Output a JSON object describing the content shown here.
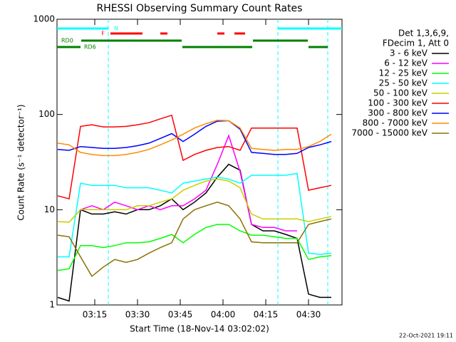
{
  "chart_data": {
    "type": "line",
    "title": "RHESSI Observing Summary Count Rates",
    "xlabel": "Start Time (18-Nov-14 03:02:02)",
    "ylabel": "Count Rate (s⁻¹ detector⁻¹)",
    "legend_header": [
      "Det 1,3,6,9,",
      "FDecim 1, Att 0"
    ],
    "footer": "22-Oct-2021 19:11",
    "yscale": "log",
    "xlim": [
      1.75,
      101.75
    ],
    "ylim": [
      1,
      1000
    ],
    "xticks": [
      {
        "value": 15,
        "label": "03:15"
      },
      {
        "value": 30,
        "label": "03:30"
      },
      {
        "value": 45,
        "label": "03:45"
      },
      {
        "value": 60,
        "label": "04:00"
      },
      {
        "value": 75,
        "label": "04:15"
      },
      {
        "value": 90,
        "label": "04:30"
      }
    ],
    "yticks": [
      1,
      10,
      100,
      1000
    ],
    "legend": "right",
    "x": [
      2,
      6,
      10,
      14,
      18,
      22,
      26,
      30,
      34,
      38,
      42,
      46,
      50,
      54,
      58,
      62,
      66,
      70,
      74,
      78,
      82,
      86,
      90,
      94,
      98
    ],
    "series": [
      {
        "name": "3 - 6 keV",
        "color": "#000000",
        "values": [
          1.2,
          1.1,
          10,
          9,
          9,
          9.5,
          9,
          10,
          10,
          11,
          13,
          10,
          12,
          15,
          22,
          30,
          26,
          7,
          6,
          6,
          5.5,
          5,
          1.3,
          1.2,
          1.2
        ]
      },
      {
        "name": "6 - 12 keV",
        "color": "#ff00ff",
        "values": [
          null,
          null,
          10,
          11,
          10,
          12,
          11,
          10,
          11,
          10,
          11,
          11,
          13,
          16,
          30,
          60,
          25,
          7,
          6.5,
          6.5,
          6,
          6,
          null,
          null,
          null
        ]
      },
      {
        "name": "12 - 25 keV",
        "color": "#00ff00",
        "values": [
          2.3,
          2.4,
          4.2,
          4.2,
          4,
          4.2,
          4.5,
          4.5,
          4.6,
          5,
          5.5,
          4.5,
          5.5,
          6.5,
          7,
          7,
          6,
          5.4,
          5.4,
          5.2,
          5,
          5,
          3,
          3.2,
          3.3
        ]
      },
      {
        "name": "25 - 50 keV",
        "color": "#00ffff",
        "values": [
          3.2,
          3.2,
          19,
          18,
          18,
          18,
          17,
          17,
          17,
          16,
          15,
          19,
          20,
          21,
          22,
          21,
          19,
          23,
          23,
          23,
          23,
          24,
          3.5,
          3.4,
          3.5
        ]
      },
      {
        "name": "50 - 100 keV",
        "color": "#cccc00",
        "values": [
          7.5,
          7.4,
          10,
          10,
          10,
          10,
          10,
          11,
          11,
          12,
          13,
          16,
          18,
          20,
          21,
          20,
          17,
          9,
          8,
          8,
          8,
          8,
          7.5,
          8,
          8.5
        ]
      },
      {
        "name": "100 - 300 keV",
        "color": "#ff0000",
        "values": [
          14,
          13,
          75,
          78,
          74,
          74,
          75,
          78,
          82,
          90,
          98,
          33,
          38,
          42,
          45,
          46,
          42,
          72,
          72,
          72,
          72,
          72,
          16,
          17,
          18
        ]
      },
      {
        "name": "300 - 800 keV",
        "color": "#0000ff",
        "values": [
          43,
          42,
          46,
          45,
          44,
          44,
          45,
          47,
          50,
          56,
          63,
          52,
          62,
          75,
          85,
          86,
          70,
          40,
          39,
          38,
          38,
          39,
          45,
          48,
          52
        ]
      },
      {
        "name": "800 - 7000 keV",
        "color": "#ff8c00",
        "values": [
          50,
          48,
          40,
          38,
          37,
          37,
          38,
          40,
          43,
          48,
          54,
          62,
          72,
          80,
          87,
          86,
          72,
          44,
          43,
          42,
          43,
          43,
          46,
          52,
          62
        ]
      },
      {
        "name": "7000 - 15000 keV",
        "color": "#8b7000",
        "values": [
          5.4,
          5.2,
          3.2,
          2,
          2.5,
          3,
          2.8,
          3,
          3.5,
          4,
          4.5,
          8,
          10,
          11,
          12,
          11,
          8,
          4.6,
          4.5,
          4.5,
          4.5,
          4.5,
          7,
          7.5,
          8
        ]
      }
    ],
    "vlines": [
      19.75,
      79.25,
      96.75
    ],
    "vline_color": "#00ffff",
    "flags": [
      {
        "label": "N",
        "color": "#00ffff",
        "intervals": [
          [
            1.75,
            19.75
          ],
          [
            79.25,
            101.75
          ]
        ]
      },
      {
        "label": "F",
        "color": "#ff0000",
        "intervals": [
          [
            20.5,
            31.75
          ],
          [
            38,
            40.5
          ],
          [
            58,
            60.5
          ],
          [
            64,
            67.75
          ]
        ]
      },
      {
        "label": "RD0",
        "color": "#008000",
        "intervals": [
          [
            10.25,
            45.5
          ],
          [
            70.5,
            89.75
          ]
        ]
      },
      {
        "label": "RD6",
        "color": "#008000",
        "intervals": [
          [
            1.75,
            10
          ],
          [
            45.75,
            70.25
          ],
          [
            90,
            96.75
          ]
        ]
      }
    ]
  }
}
